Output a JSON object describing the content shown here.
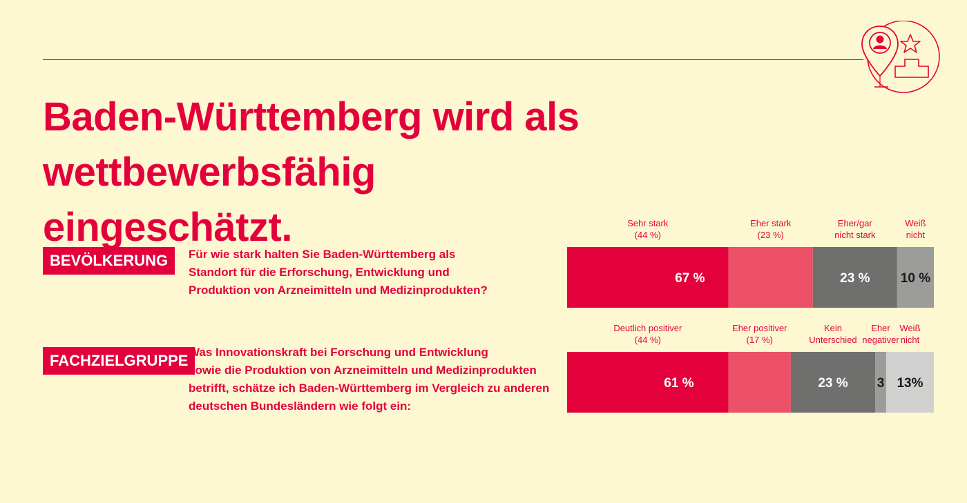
{
  "title": {
    "line1": "Baden-Württemberg wird als wettbewerbsfähig",
    "line2": "eingeschätzt."
  },
  "colors": {
    "background": "#fdf7d2",
    "accent": "#e4003b",
    "light_red": "#ec5067",
    "dark_gray": "#6f6f6e",
    "mid_gray": "#9c9c9b",
    "light_gray": "#d0d0cf"
  },
  "icon": "location-pin-person-star-podium-icon",
  "sections": [
    {
      "badge": "BEVÖLKERUNG",
      "question": [
        "Für wie stark halten Sie Baden-Württemberg als",
        "Standort für die Erforschung, Entwicklung und",
        "Produktion von Arzneimitteln und Medizinprodukten?"
      ]
    },
    {
      "badge": "FACHZIELGRUPPE",
      "question": [
        "Was Innovationskraft bei Forschung und Entwicklung",
        "sowie die Produktion von Arzneimitteln und Medizinprodukten",
        "betrifft, schätze ich Baden-Württemberg im Vergleich zu anderen",
        "deutschen Bundesländern wie folgt ein:"
      ]
    }
  ],
  "chart_data": [
    {
      "type": "bar",
      "orientation": "horizontal-stacked-100",
      "segments": [
        {
          "label": [
            "Sehr stark",
            "(44 %)"
          ],
          "value": 44,
          "color": "#e4003b",
          "text_color": "#ffffff"
        },
        {
          "label": [
            "Eher stark",
            "(23 %)"
          ],
          "value": 23,
          "color": "#ec5067",
          "text_color": "#ffffff"
        },
        {
          "label": [
            "Eher/gar",
            "nicht stark"
          ],
          "value": 23,
          "color": "#6f6f6e",
          "text_color": "#ffffff"
        },
        {
          "label": [
            "Weiß",
            "nicht"
          ],
          "value": 10,
          "color": "#9c9c9b",
          "text_color": "#1a1a1a"
        }
      ],
      "data_labels": [
        {
          "text": "67 %",
          "from": 0,
          "to": 2,
          "text_color": "#ffffff"
        },
        {
          "text": "23 %",
          "from": 2,
          "to": 3,
          "text_color": "#ffffff"
        },
        {
          "text": "10 %",
          "from": 3,
          "to": 4,
          "text_color": "#1a1a1a"
        }
      ]
    },
    {
      "type": "bar",
      "orientation": "horizontal-stacked-100",
      "segments": [
        {
          "label": [
            "Deutlich positiver",
            "(44 %)"
          ],
          "value": 44,
          "color": "#e4003b",
          "text_color": "#ffffff"
        },
        {
          "label": [
            "Eher positiver",
            "(17 %)"
          ],
          "value": 17,
          "color": "#ec5067",
          "text_color": "#ffffff"
        },
        {
          "label": [
            "Kein",
            "Unterschied"
          ],
          "value": 23,
          "color": "#6f6f6e",
          "text_color": "#ffffff"
        },
        {
          "label": [
            "Eher",
            "negativer"
          ],
          "value": 3,
          "color": "#9c9c9b",
          "text_color": "#1a1a1a"
        },
        {
          "label": [
            "Weiß",
            "nicht"
          ],
          "value": 13,
          "color": "#d0d0cf",
          "text_color": "#1a1a1a"
        }
      ],
      "data_labels": [
        {
          "text": "61 %",
          "from": 0,
          "to": 2,
          "text_color": "#ffffff"
        },
        {
          "text": "23 %",
          "from": 2,
          "to": 3,
          "text_color": "#ffffff"
        },
        {
          "text": "3",
          "from": 3,
          "to": 4,
          "text_color": "#1a1a1a"
        },
        {
          "text": "13%",
          "from": 4,
          "to": 5,
          "text_color": "#1a1a1a"
        }
      ]
    }
  ]
}
